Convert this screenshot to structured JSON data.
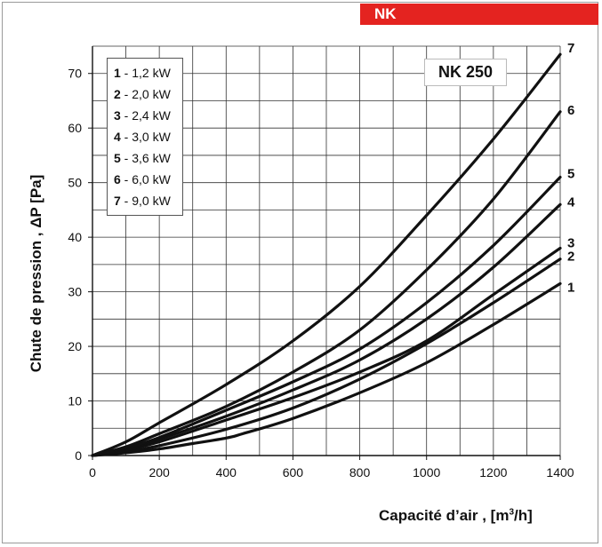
{
  "banner": {
    "label": "NK",
    "color": "#e42320"
  },
  "chart_data": {
    "type": "line",
    "title": "NK 250",
    "xlabel": "Capacité d’air",
    "xunit": "[m",
    "xunit_sup": "3",
    "xunit_end": "/h]",
    "ylabel": "Chute de pression , ΔP [Pa]",
    "xlim": [
      0,
      1400
    ],
    "ylim": [
      0,
      75
    ],
    "xticks": [
      0,
      200,
      400,
      600,
      800,
      1000,
      1200,
      1400
    ],
    "yticks": [
      0,
      10,
      20,
      30,
      40,
      50,
      60,
      70
    ],
    "grid": true,
    "legend_position": "top-left",
    "series": [
      {
        "name": "1",
        "legend": "- 1,2 kW",
        "x": [
          0,
          100,
          200,
          300,
          400,
          450,
          600,
          800,
          1000,
          1200,
          1400
        ],
        "y": [
          0,
          0.5,
          1.2,
          2.2,
          3.2,
          4.0,
          6.8,
          11.5,
          17,
          24,
          31.5
        ]
      },
      {
        "name": "2",
        "legend": "- 2,0 kW",
        "x": [
          0,
          100,
          200,
          400,
          600,
          800,
          1000,
          1200,
          1400
        ],
        "y": [
          0,
          0.7,
          1.8,
          4.8,
          8.7,
          14,
          20.5,
          28,
          36
        ]
      },
      {
        "name": "3",
        "legend": "- 2,4 kW",
        "x": [
          0,
          100,
          200,
          400,
          600,
          800,
          1000,
          1200,
          1400
        ],
        "y": [
          0,
          1.0,
          2.5,
          6.5,
          10.6,
          15.3,
          21,
          29.5,
          38
        ]
      },
      {
        "name": "4",
        "legend": "- 3,0 kW",
        "x": [
          0,
          100,
          200,
          400,
          600,
          800,
          1000,
          1200,
          1400
        ],
        "y": [
          0,
          1.2,
          3.0,
          7.2,
          12,
          17.5,
          25,
          34.5,
          46
        ]
      },
      {
        "name": "5",
        "legend": "- 3,6 kW",
        "x": [
          0,
          100,
          200,
          400,
          600,
          800,
          1000,
          1200,
          1400
        ],
        "y": [
          0,
          1.4,
          3.3,
          8.3,
          13.5,
          19.5,
          28,
          38.5,
          51
        ]
      },
      {
        "name": "6",
        "legend": "- 6,0 kW",
        "x": [
          0,
          100,
          200,
          400,
          600,
          800,
          1000,
          1200,
          1400
        ],
        "y": [
          0,
          1.6,
          4.0,
          9.0,
          15.3,
          23,
          34,
          47,
          63
        ]
      },
      {
        "name": "7",
        "legend": "- 9,0 kW",
        "x": [
          0,
          100,
          200,
          400,
          600,
          800,
          1000,
          1200,
          1400
        ],
        "y": [
          0,
          2.5,
          6.0,
          13,
          21,
          31,
          44,
          58,
          73.5
        ]
      }
    ]
  }
}
